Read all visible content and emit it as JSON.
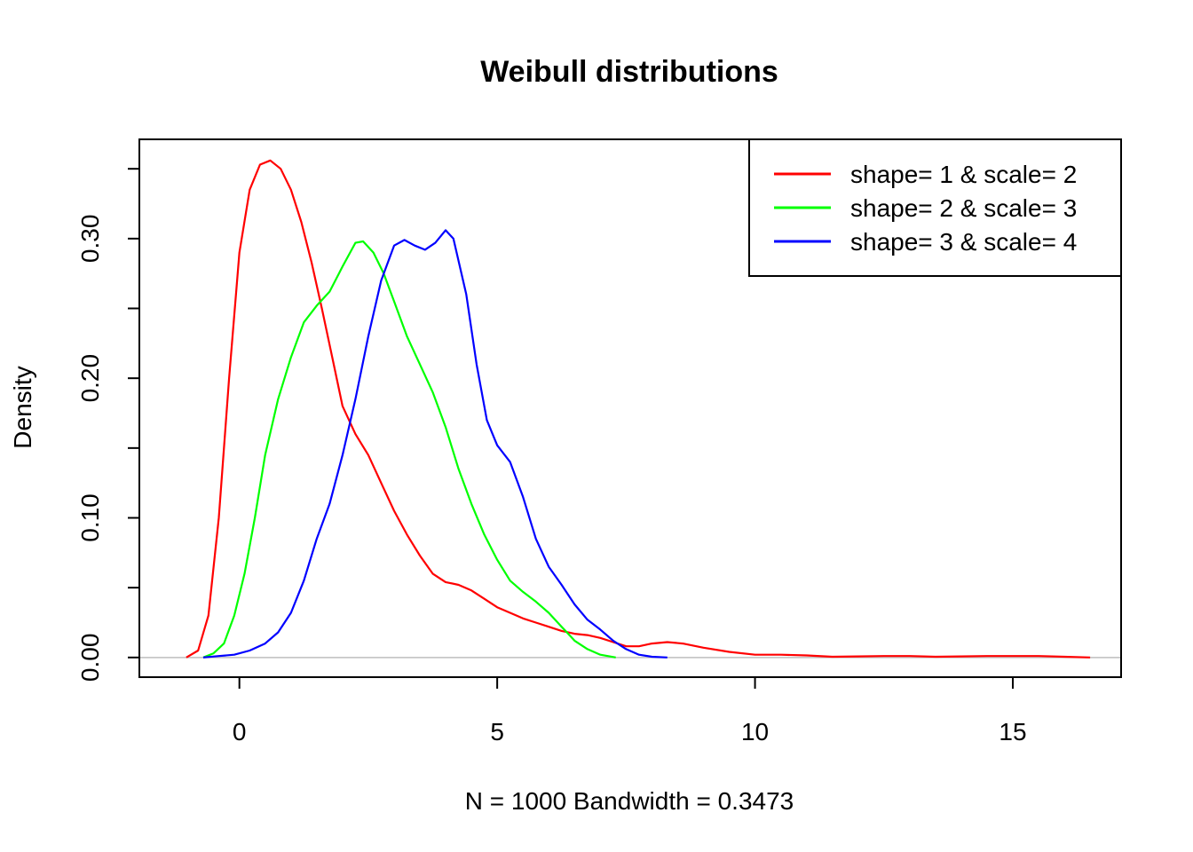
{
  "chart_data": {
    "type": "line",
    "title": "Weibull distributions",
    "xlabel": "N = 1000   Bandwidth = 0.3473",
    "ylabel": "Density",
    "xlim": [
      -1.94,
      17.1
    ],
    "ylim": [
      -0.0141,
      0.3711
    ],
    "x_ticks": [
      0,
      5,
      10,
      15
    ],
    "x_tick_labels": [
      "0",
      "5",
      "10",
      "15"
    ],
    "y_ticks": [
      0,
      0.05,
      0.1,
      0.15,
      0.2,
      0.25,
      0.3,
      0.35
    ],
    "y_tick_labels": [
      "0.00",
      "",
      "0.10",
      "",
      "0.20",
      "",
      "0.30",
      ""
    ],
    "baseline": 0,
    "baseline_color": "#bebebe",
    "legend_position": "top-right",
    "grid": false,
    "series": [
      {
        "name": "shape= 1 & scale= 2",
        "color": "#ff0000",
        "points": [
          [
            -1.03,
            0.0
          ],
          [
            -0.8,
            0.005
          ],
          [
            -0.6,
            0.03
          ],
          [
            -0.4,
            0.1
          ],
          [
            -0.2,
            0.2
          ],
          [
            0.0,
            0.29
          ],
          [
            0.2,
            0.335
          ],
          [
            0.4,
            0.353
          ],
          [
            0.6,
            0.356
          ],
          [
            0.8,
            0.35
          ],
          [
            1.0,
            0.335
          ],
          [
            1.2,
            0.312
          ],
          [
            1.4,
            0.283
          ],
          [
            1.6,
            0.25
          ],
          [
            1.8,
            0.215
          ],
          [
            2.0,
            0.18
          ],
          [
            2.25,
            0.16
          ],
          [
            2.5,
            0.145
          ],
          [
            2.75,
            0.125
          ],
          [
            3.0,
            0.105
          ],
          [
            3.25,
            0.088
          ],
          [
            3.5,
            0.073
          ],
          [
            3.75,
            0.06
          ],
          [
            4.0,
            0.054
          ],
          [
            4.25,
            0.052
          ],
          [
            4.5,
            0.048
          ],
          [
            4.75,
            0.042
          ],
          [
            5.0,
            0.036
          ],
          [
            5.25,
            0.032
          ],
          [
            5.5,
            0.028
          ],
          [
            5.75,
            0.025
          ],
          [
            6.0,
            0.022
          ],
          [
            6.25,
            0.019
          ],
          [
            6.5,
            0.017
          ],
          [
            6.75,
            0.016
          ],
          [
            7.0,
            0.014
          ],
          [
            7.25,
            0.011
          ],
          [
            7.5,
            0.008
          ],
          [
            7.75,
            0.008
          ],
          [
            8.0,
            0.01
          ],
          [
            8.3,
            0.011
          ],
          [
            8.6,
            0.01
          ],
          [
            9.0,
            0.007
          ],
          [
            9.5,
            0.004
          ],
          [
            10.0,
            0.002
          ],
          [
            10.5,
            0.002
          ],
          [
            11.0,
            0.0015
          ],
          [
            11.5,
            0.0005
          ],
          [
            12.0,
            0.0008
          ],
          [
            12.5,
            0.001
          ],
          [
            13.0,
            0.001
          ],
          [
            13.5,
            0.0005
          ],
          [
            14.0,
            0.0008
          ],
          [
            14.5,
            0.001
          ],
          [
            15.0,
            0.001
          ],
          [
            15.5,
            0.001
          ],
          [
            16.0,
            0.0005
          ],
          [
            16.5,
            0.0
          ]
        ]
      },
      {
        "name": "shape= 2 & scale= 3",
        "color": "#00ff00",
        "points": [
          [
            -0.7,
            0.0
          ],
          [
            -0.5,
            0.003
          ],
          [
            -0.3,
            0.01
          ],
          [
            -0.1,
            0.03
          ],
          [
            0.1,
            0.06
          ],
          [
            0.3,
            0.1
          ],
          [
            0.5,
            0.145
          ],
          [
            0.75,
            0.185
          ],
          [
            1.0,
            0.215
          ],
          [
            1.25,
            0.24
          ],
          [
            1.5,
            0.252
          ],
          [
            1.75,
            0.262
          ],
          [
            2.0,
            0.28
          ],
          [
            2.25,
            0.297
          ],
          [
            2.4,
            0.298
          ],
          [
            2.6,
            0.29
          ],
          [
            2.8,
            0.275
          ],
          [
            3.0,
            0.255
          ],
          [
            3.25,
            0.23
          ],
          [
            3.5,
            0.21
          ],
          [
            3.75,
            0.19
          ],
          [
            4.0,
            0.165
          ],
          [
            4.25,
            0.135
          ],
          [
            4.5,
            0.11
          ],
          [
            4.75,
            0.088
          ],
          [
            5.0,
            0.07
          ],
          [
            5.25,
            0.055
          ],
          [
            5.5,
            0.047
          ],
          [
            5.75,
            0.04
          ],
          [
            6.0,
            0.032
          ],
          [
            6.25,
            0.022
          ],
          [
            6.5,
            0.012
          ],
          [
            6.75,
            0.006
          ],
          [
            7.0,
            0.002
          ],
          [
            7.3,
            0.0
          ]
        ]
      },
      {
        "name": "shape= 3 & scale= 4",
        "color": "#0000ff",
        "points": [
          [
            -0.7,
            0.0
          ],
          [
            -0.4,
            0.001
          ],
          [
            -0.1,
            0.002
          ],
          [
            0.2,
            0.005
          ],
          [
            0.5,
            0.01
          ],
          [
            0.75,
            0.018
          ],
          [
            1.0,
            0.032
          ],
          [
            1.25,
            0.055
          ],
          [
            1.5,
            0.085
          ],
          [
            1.75,
            0.11
          ],
          [
            2.0,
            0.145
          ],
          [
            2.25,
            0.185
          ],
          [
            2.5,
            0.23
          ],
          [
            2.75,
            0.27
          ],
          [
            3.0,
            0.295
          ],
          [
            3.2,
            0.299
          ],
          [
            3.4,
            0.295
          ],
          [
            3.6,
            0.292
          ],
          [
            3.8,
            0.297
          ],
          [
            4.0,
            0.306
          ],
          [
            4.15,
            0.3
          ],
          [
            4.4,
            0.26
          ],
          [
            4.6,
            0.21
          ],
          [
            4.8,
            0.17
          ],
          [
            5.0,
            0.152
          ],
          [
            5.25,
            0.14
          ],
          [
            5.5,
            0.115
          ],
          [
            5.75,
            0.085
          ],
          [
            6.0,
            0.065
          ],
          [
            6.25,
            0.052
          ],
          [
            6.5,
            0.038
          ],
          [
            6.75,
            0.027
          ],
          [
            7.0,
            0.02
          ],
          [
            7.25,
            0.012
          ],
          [
            7.5,
            0.006
          ],
          [
            7.75,
            0.002
          ],
          [
            8.0,
            0.0005
          ],
          [
            8.3,
            0.0
          ]
        ]
      }
    ]
  }
}
